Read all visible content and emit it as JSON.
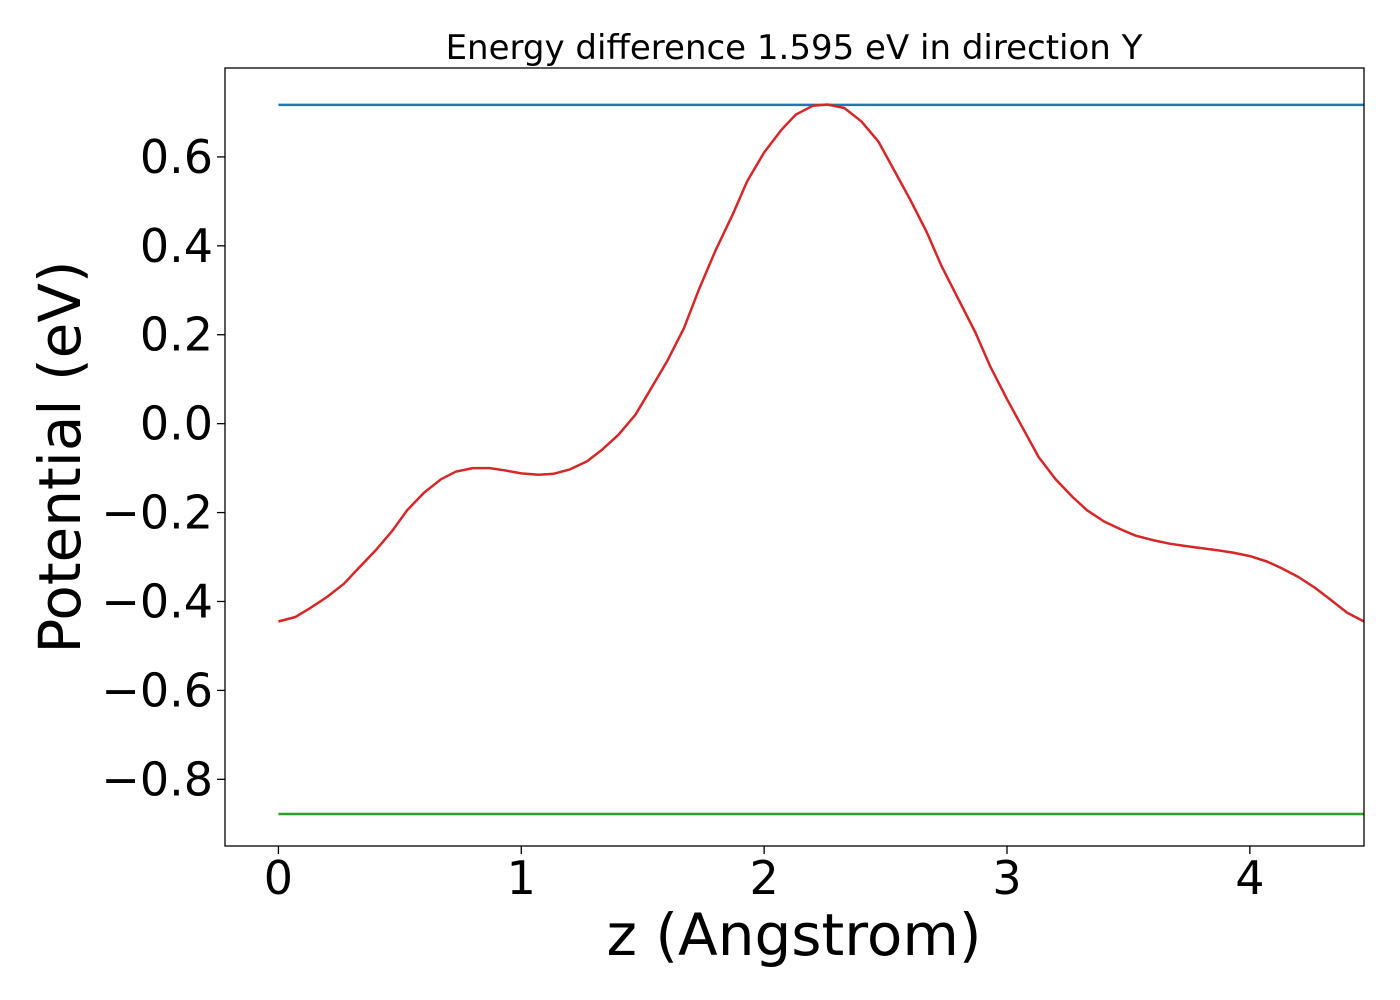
{
  "chart_data": {
    "type": "line",
    "title": "Energy difference 1.595 eV in direction Y",
    "xlabel": "z (Angstrom)",
    "ylabel": "Potential (eV)",
    "xlim": [
      -0.22,
      4.47
    ],
    "ylim": [
      -0.95,
      0.8
    ],
    "xticks": [
      0,
      1,
      2,
      3,
      4
    ],
    "xtick_labels": [
      "0",
      "1",
      "2",
      "3",
      "4"
    ],
    "yticks": [
      0.6,
      0.4,
      0.2,
      0.0,
      -0.2,
      -0.4,
      -0.6,
      -0.8
    ],
    "ytick_labels": [
      "0.6",
      "0.4",
      "0.2",
      "0.0",
      "−0.2",
      "−0.4",
      "−0.6",
      "−0.8"
    ],
    "grid": false,
    "series": [
      {
        "color": "#1f77b4",
        "x": [
          0,
          4.47
        ],
        "y": [
          0.717,
          0.717
        ]
      },
      {
        "color": "#d62728",
        "x": [
          0,
          0.07,
          0.13,
          0.2,
          0.27,
          0.33,
          0.4,
          0.47,
          0.53,
          0.6,
          0.67,
          0.73,
          0.8,
          0.87,
          0.93,
          1.0,
          1.07,
          1.13,
          1.2,
          1.27,
          1.33,
          1.4,
          1.47,
          1.53,
          1.6,
          1.67,
          1.73,
          1.8,
          1.87,
          1.93,
          2.0,
          2.07,
          2.13,
          2.2,
          2.26,
          2.33,
          2.4,
          2.47,
          2.53,
          2.6,
          2.67,
          2.73,
          2.8,
          2.87,
          2.93,
          3.0,
          3.07,
          3.13,
          3.2,
          3.27,
          3.33,
          3.4,
          3.47,
          3.53,
          3.6,
          3.67,
          3.73,
          3.8,
          3.87,
          3.93,
          4.0,
          4.07,
          4.13,
          4.2,
          4.27,
          4.33,
          4.4,
          4.47
        ],
        "y": [
          -0.445,
          -0.435,
          -0.415,
          -0.39,
          -0.36,
          -0.325,
          -0.285,
          -0.24,
          -0.195,
          -0.155,
          -0.125,
          -0.108,
          -0.1,
          -0.1,
          -0.105,
          -0.112,
          -0.115,
          -0.113,
          -0.103,
          -0.085,
          -0.06,
          -0.025,
          0.02,
          0.075,
          0.14,
          0.215,
          0.3,
          0.39,
          0.47,
          0.545,
          0.61,
          0.66,
          0.695,
          0.715,
          0.718,
          0.71,
          0.68,
          0.635,
          0.575,
          0.505,
          0.43,
          0.355,
          0.28,
          0.205,
          0.13,
          0.055,
          -0.015,
          -0.075,
          -0.125,
          -0.165,
          -0.195,
          -0.22,
          -0.238,
          -0.252,
          -0.262,
          -0.27,
          -0.275,
          -0.28,
          -0.285,
          -0.29,
          -0.298,
          -0.31,
          -0.325,
          -0.345,
          -0.37,
          -0.395,
          -0.425,
          -0.445
        ]
      },
      {
        "color": "#2ca02c",
        "x": [
          0,
          4.47
        ],
        "y": [
          -0.878,
          -0.878
        ]
      }
    ]
  }
}
